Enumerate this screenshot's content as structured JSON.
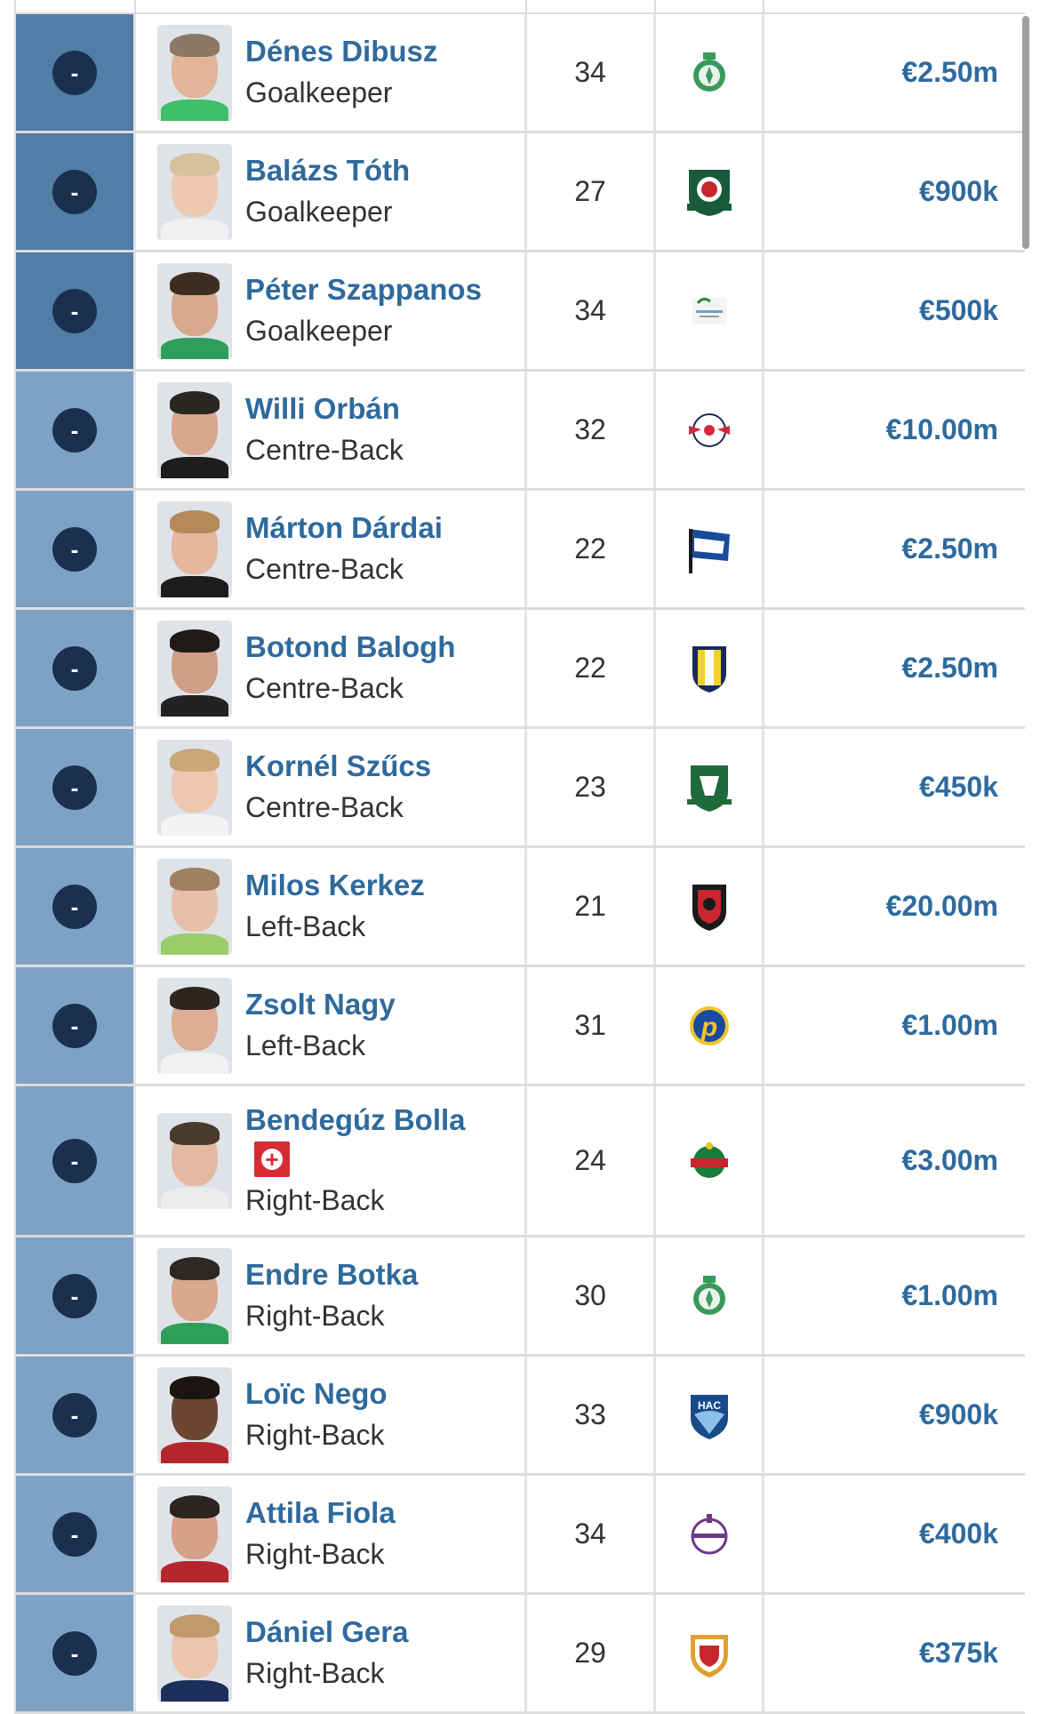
{
  "accent_color": "#2f6a9d",
  "players": [
    {
      "number": "-",
      "name": "Dénes Dibusz",
      "position": "Goalkeeper",
      "age": "34",
      "club_icon": "ferencvaros-crest-icon",
      "value": "€2.50m",
      "group": "gk",
      "skin": "#e2b49a",
      "hair": "#8a7a64",
      "shirt": "#3fbf6a"
    },
    {
      "number": "-",
      "name": "Balázs Tóth",
      "position": "Goalkeeper",
      "age": "27",
      "club_icon": "blackburn-crest-icon",
      "value": "€900k",
      "group": "gk",
      "skin": "#edc9b2",
      "hair": "#d7c29e",
      "shirt": "#f0f0f0"
    },
    {
      "number": "-",
      "name": "Péter Szappanos",
      "position": "Goalkeeper",
      "age": "34",
      "club_icon": "club-logo-icon",
      "value": "€500k",
      "group": "gk",
      "skin": "#d9a98e",
      "hair": "#3e2e22",
      "shirt": "#2e9f5a"
    },
    {
      "number": "-",
      "name": "Willi Orbán",
      "position": "Centre-Back",
      "age": "32",
      "club_icon": "rb-leipzig-crest-icon",
      "value": "€10.00m",
      "group": "def",
      "skin": "#d8a68c",
      "hair": "#2a2622",
      "shirt": "#1d1d1d"
    },
    {
      "number": "-",
      "name": "Márton Dárdai",
      "position": "Centre-Back",
      "age": "22",
      "club_icon": "hertha-flag-icon",
      "value": "€2.50m",
      "group": "def",
      "skin": "#e4b79e",
      "hair": "#b48a5a",
      "shirt": "#1c1c1c"
    },
    {
      "number": "-",
      "name": "Botond Balogh",
      "position": "Centre-Back",
      "age": "22",
      "club_icon": "parma-crest-icon",
      "value": "€2.50m",
      "group": "def",
      "skin": "#cf9f86",
      "hair": "#1f1a18",
      "shirt": "#222222"
    },
    {
      "number": "-",
      "name": "Kornél Szűcs",
      "position": "Centre-Back",
      "age": "23",
      "club_icon": "plymouth-crest-icon",
      "value": "€450k",
      "group": "def",
      "skin": "#edc7b0",
      "hair": "#c9a87c",
      "shirt": "#f4f4f4"
    },
    {
      "number": "-",
      "name": "Milos Kerkez",
      "position": "Left-Back",
      "age": "21",
      "club_icon": "bournemouth-crest-icon",
      "value": "€20.00m",
      "group": "def",
      "skin": "#e6c0a8",
      "hair": "#a08060",
      "shirt": "#9acd6a"
    },
    {
      "number": "-",
      "name": "Zsolt Nagy",
      "position": "Left-Back",
      "age": "31",
      "club_icon": "puskas-crest-icon",
      "value": "€1.00m",
      "group": "def",
      "skin": "#dcae95",
      "hair": "#2d2620",
      "shirt": "#f2f2f2"
    },
    {
      "number": "-",
      "name": "Bendegúz Bolla",
      "position": "Right-Back",
      "age": "24",
      "club_icon": "rapid-wien-crest-icon",
      "value": "€3.00m",
      "group": "def",
      "skin": "#e3b9a1",
      "hair": "#4a3a2c",
      "shirt": "#ececec",
      "flag": "swiss-flag-icon"
    },
    {
      "number": "-",
      "name": "Endre Botka",
      "position": "Right-Back",
      "age": "30",
      "club_icon": "ferencvaros-crest-icon",
      "value": "€1.00m",
      "group": "def",
      "skin": "#d9a78c",
      "hair": "#2e2822",
      "shirt": "#2e9f5a"
    },
    {
      "number": "-",
      "name": "Loïc Nego",
      "position": "Right-Back",
      "age": "33",
      "club_icon": "le-havre-crest-icon",
      "value": "€900k",
      "group": "def",
      "skin": "#6b4632",
      "hair": "#1c1410",
      "shirt": "#b3262b"
    },
    {
      "number": "-",
      "name": "Attila Fiola",
      "position": "Right-Back",
      "age": "34",
      "club_icon": "ujpest-crest-icon",
      "value": "€400k",
      "group": "def",
      "skin": "#d5a189",
      "hair": "#2b2420",
      "shirt": "#b3262b"
    },
    {
      "number": "-",
      "name": "Dániel Gera",
      "position": "Right-Back",
      "age": "29",
      "club_icon": "debrecen-crest-icon",
      "value": "€375k",
      "group": "def",
      "skin": "#ecc5ad",
      "hair": "#c09a6a",
      "shirt": "#1c2f5a"
    }
  ]
}
